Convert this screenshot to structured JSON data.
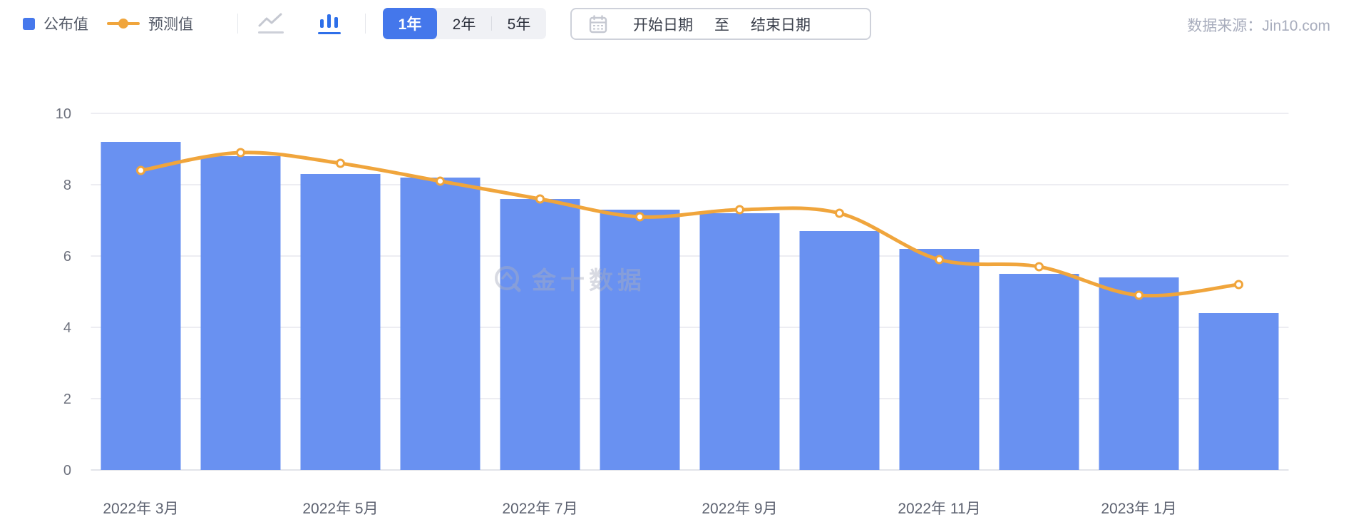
{
  "toolbar": {
    "legend": [
      {
        "label": "公布值",
        "marker": "blue-square",
        "color": "#4678ec"
      },
      {
        "label": "预测值",
        "marker": "orange-line-dot",
        "color": "#f0a53c"
      }
    ],
    "chart_type_toggle": {
      "active": "bar",
      "options": [
        "line-chart",
        "bar-chart"
      ]
    },
    "range_buttons": [
      {
        "label": "1年",
        "active": true
      },
      {
        "label": "2年",
        "active": false
      },
      {
        "label": "5年",
        "active": false
      }
    ],
    "date_picker": {
      "start_placeholder": "开始日期",
      "separator": "至",
      "end_placeholder": "结束日期"
    },
    "source": "数据来源：Jin10.com"
  },
  "watermark": {
    "text": "金十数据"
  },
  "chart_data": {
    "type": "bar",
    "n_categories": 12,
    "tick_labels": [
      "2022年 3月",
      "",
      "2022年 5月",
      "",
      "2022年 7月",
      "",
      "2022年 9月",
      "",
      "2022年 11月",
      "",
      "2023年 1月",
      ""
    ],
    "series": [
      {
        "name": "公布值",
        "type": "bar",
        "color": "#6991f1",
        "values": [
          9.2,
          8.8,
          8.3,
          8.2,
          7.6,
          7.3,
          7.2,
          6.7,
          6.2,
          5.5,
          5.4,
          4.4
        ]
      },
      {
        "name": "预测值",
        "type": "line",
        "color": "#f0a53c",
        "values": [
          8.4,
          8.9,
          8.6,
          8.1,
          7.6,
          7.1,
          7.3,
          7.2,
          5.9,
          5.7,
          4.9,
          5.2
        ]
      }
    ],
    "ylim": [
      0,
      10
    ],
    "y_ticks": [
      0,
      2,
      4,
      6,
      8,
      10
    ],
    "grid": true,
    "legend_position": "top-left",
    "colors": {
      "grid_line": "#ededf2",
      "axis_line": "#e2e4ea",
      "y_label": "#6e727e",
      "x_label": "#5d6270",
      "marker_fill": "#ffffff"
    }
  }
}
